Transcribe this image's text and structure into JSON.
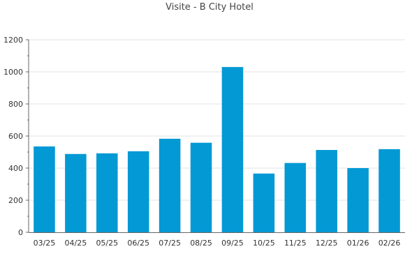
{
  "chart_data": {
    "type": "bar",
    "title": "Visite - B City Hotel",
    "xlabel": "",
    "ylabel": "",
    "categories": [
      "03/25",
      "04/25",
      "05/25",
      "06/25",
      "07/25",
      "08/25",
      "09/25",
      "10/25",
      "11/25",
      "12/25",
      "01/26",
      "02/26"
    ],
    "values": [
      535,
      488,
      492,
      505,
      583,
      558,
      1030,
      366,
      432,
      513,
      400,
      518
    ],
    "ylim": [
      0,
      1200
    ],
    "yticks": [
      0,
      200,
      400,
      600,
      800,
      1000,
      1200
    ],
    "grid": true,
    "legend": "none",
    "bar_color": "#0399d4"
  }
}
